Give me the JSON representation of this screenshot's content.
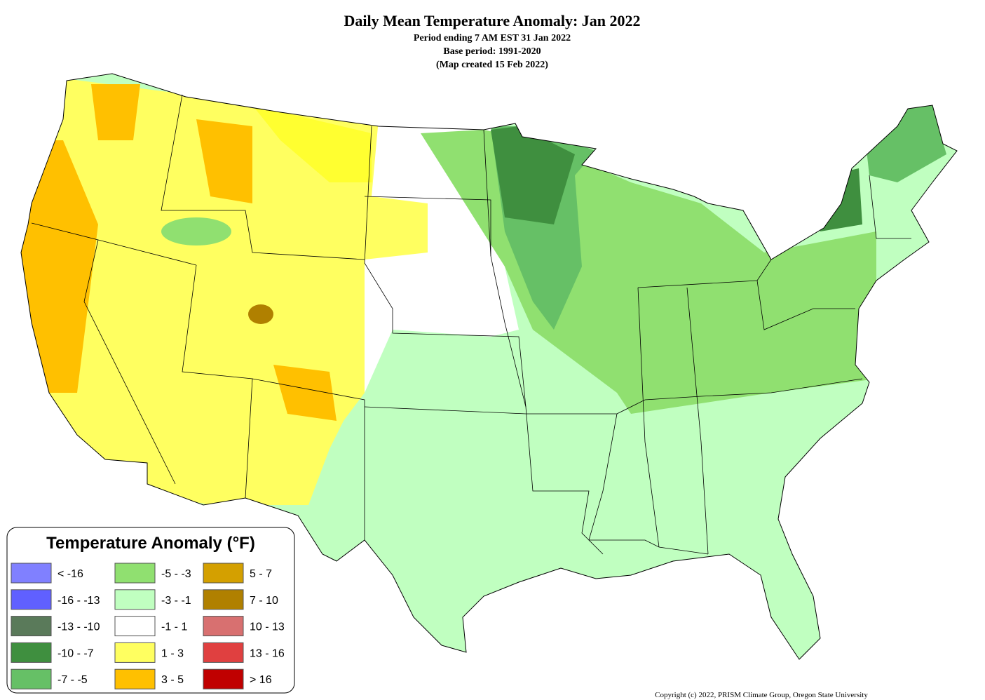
{
  "header": {
    "title": "Daily Mean Temperature Anomaly: Jan 2022",
    "subtitle": [
      "Period ending 7 AM EST 31 Jan 2022",
      "Base period: 1991-2020",
      "(Map created 15 Feb 2022)"
    ]
  },
  "legend": {
    "title": "Temperature Anomaly (°F)",
    "items": [
      {
        "label": "< -16",
        "color": "#8080ff"
      },
      {
        "label": "-16 - -13",
        "color": "#6060ff"
      },
      {
        "label": "-13 - -10",
        "color": "#5a7a5a"
      },
      {
        "label": "-10 - -7",
        "color": "#3f8f3f"
      },
      {
        "label": "-7 - -5",
        "color": "#66c066"
      },
      {
        "label": "-5 - -3",
        "color": "#90e070"
      },
      {
        "label": "-3 - -1",
        "color": "#c0ffc0"
      },
      {
        "label": "-1 - 1",
        "color": "#ffffff"
      },
      {
        "label": "1 - 3",
        "color": "#ffff60"
      },
      {
        "label": "3 - 5",
        "color": "#ffc000"
      },
      {
        "label": "5 - 7",
        "color": "#d4a000"
      },
      {
        "label": "7 - 10",
        "color": "#b08000"
      },
      {
        "label": "10 - 13",
        "color": "#d87070"
      },
      {
        "label": "13 - 16",
        "color": "#e04040"
      },
      {
        "label": "> 16",
        "color": "#c00000"
      }
    ]
  },
  "copyright": "Copyright (c) 2022, PRISM Climate Group, Oregon State University"
}
